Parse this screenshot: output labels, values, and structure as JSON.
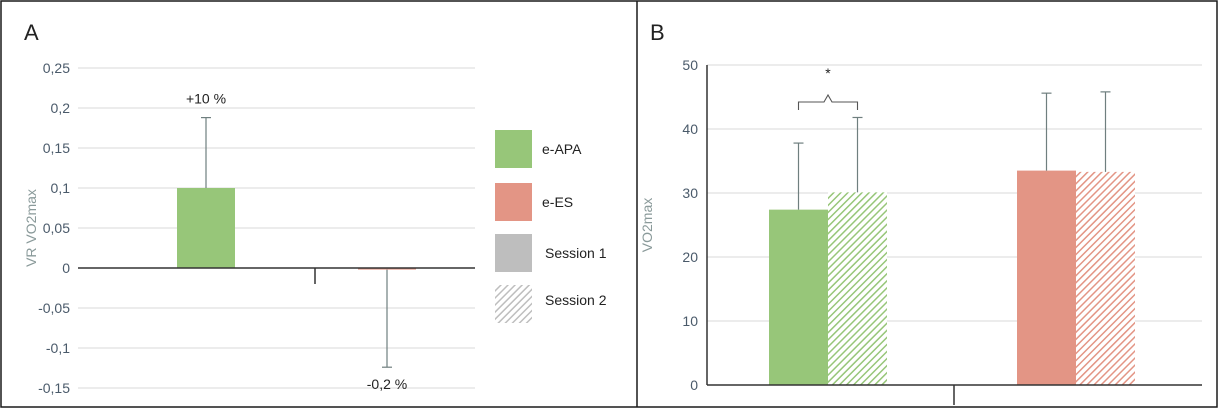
{
  "panels": {
    "a_label": "A",
    "b_label": "B"
  },
  "legend": {
    "items": [
      {
        "label": "e-APA",
        "color": "#97c679",
        "pattern": "solid"
      },
      {
        "label": "e-ES",
        "color": "#e39585",
        "pattern": "solid"
      },
      {
        "label": "Session 1",
        "color": "#bebebe",
        "pattern": "solid"
      },
      {
        "label": "Session 2",
        "color": "#bebebe",
        "pattern": "hatched"
      }
    ]
  },
  "chart_data": [
    {
      "type": "bar",
      "panel": "A",
      "ylabel": "VR VO2max",
      "xlabel": "",
      "ylim": [
        -0.15,
        0.25
      ],
      "yticks": [
        -0.15,
        -0.1,
        -0.05,
        0,
        0.05,
        0.1,
        0.15,
        0.2,
        0.25
      ],
      "ytick_labels": [
        "-0,15",
        "-0,1",
        "-0,05",
        "0",
        "0,05",
        "0,1",
        "0,15",
        "0,2",
        "0,25"
      ],
      "grid": true,
      "series": [
        {
          "name": "e-APA",
          "value": 0.1,
          "error": 0.088,
          "color": "#97c679",
          "annotation": "+10 %"
        },
        {
          "name": "e-ES",
          "value": -0.002,
          "error": 0.122,
          "color": "#e39585",
          "annotation": "-0,2 %"
        }
      ]
    },
    {
      "type": "bar",
      "panel": "B",
      "ylabel": "VO2max",
      "xlabel": "",
      "ylim": [
        0,
        50
      ],
      "yticks": [
        0,
        10,
        20,
        30,
        40,
        50
      ],
      "ytick_labels": [
        "0",
        "10",
        "20",
        "30",
        "40",
        "50"
      ],
      "grid": true,
      "groups": [
        {
          "name": "e-APA",
          "color": "#97c679",
          "session1": 27.4,
          "session1_error": 10.4,
          "session2": 30.1,
          "session2_error": 11.7,
          "significance": "*"
        },
        {
          "name": "e-ES",
          "color": "#e39585",
          "session1": 33.5,
          "session1_error": 12.1,
          "session2": 33.3,
          "session2_error": 12.5,
          "significance": ""
        }
      ]
    }
  ]
}
